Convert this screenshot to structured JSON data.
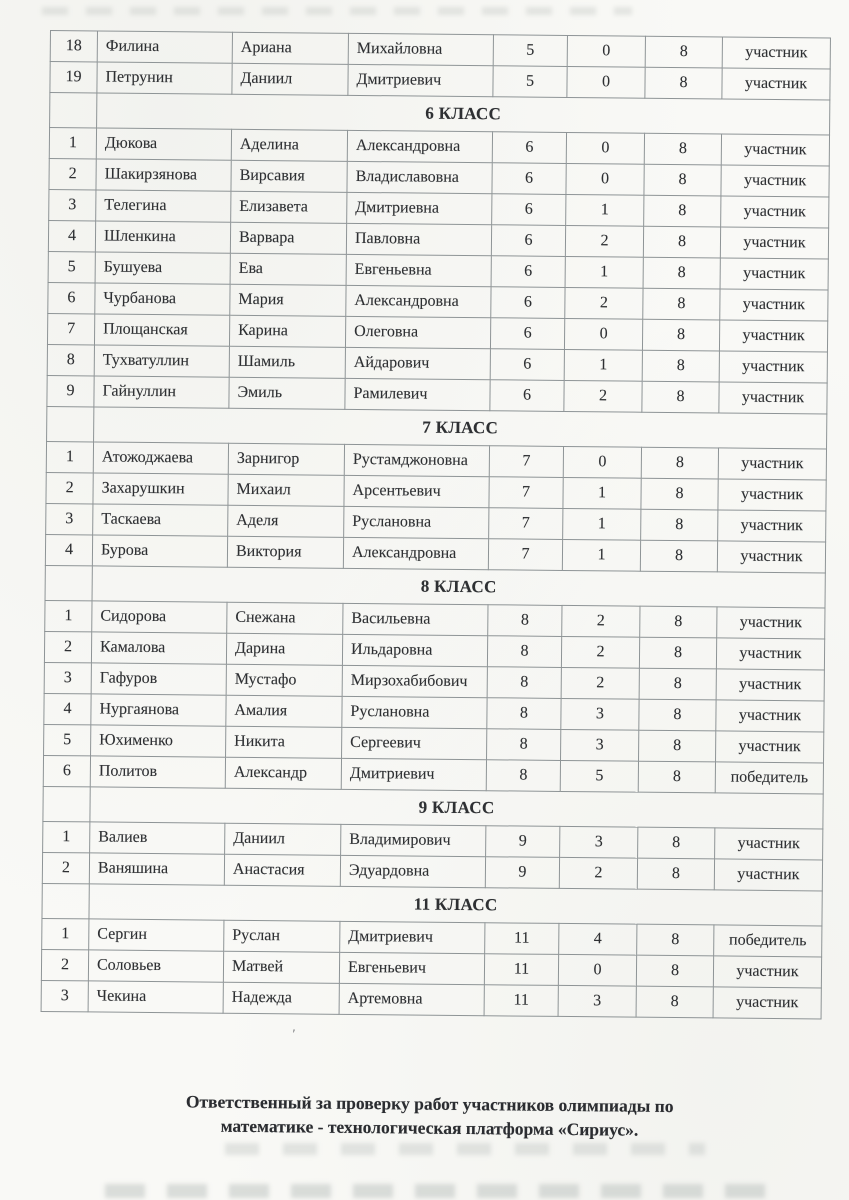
{
  "document": {
    "kind": "scanned olympiad results protocol (continuation page)",
    "footer": {
      "line1": "Ответственный за проверку работ участников олимпиады по",
      "line2": "математике - технологическая платформа «Сириус»."
    }
  },
  "colors": {
    "paper": "#f9f9f6",
    "ink": "#2e3033",
    "table_border": "#8e9496"
  },
  "table": {
    "columns": [
      "num",
      "last_name",
      "first_name",
      "patronymic",
      "grade",
      "score",
      "max_score",
      "status"
    ],
    "leading_rows": [
      {
        "num": "18",
        "last_name": "Филина",
        "first_name": "Ариана",
        "patronymic": "Михайловна",
        "grade": "5",
        "score": "0",
        "max_score": "8",
        "status": "участник"
      },
      {
        "num": "19",
        "last_name": "Петрунин",
        "first_name": "Даниил",
        "patronymic": "Дмитриевич",
        "grade": "5",
        "score": "0",
        "max_score": "8",
        "status": "участник"
      }
    ],
    "sections": [
      {
        "header": "6 КЛАСС",
        "rows": [
          {
            "num": "1",
            "last_name": "Дюкова",
            "first_name": "Аделина",
            "patronymic": "Александровна",
            "grade": "6",
            "score": "0",
            "max_score": "8",
            "status": "участник"
          },
          {
            "num": "2",
            "last_name": "Шакирзянова",
            "first_name": "Вирсавия",
            "patronymic": "Владиславовна",
            "grade": "6",
            "score": "0",
            "max_score": "8",
            "status": "участник"
          },
          {
            "num": "3",
            "last_name": "Телегина",
            "first_name": "Елизавета",
            "patronymic": "Дмитриевна",
            "grade": "6",
            "score": "1",
            "max_score": "8",
            "status": "участник"
          },
          {
            "num": "4",
            "last_name": "Шленкина",
            "first_name": "Варвара",
            "patronymic": "Павловна",
            "grade": "6",
            "score": "2",
            "max_score": "8",
            "status": "участник"
          },
          {
            "num": "5",
            "last_name": "Бушуева",
            "first_name": "Ева",
            "patronymic": "Евгеньевна",
            "grade": "6",
            "score": "1",
            "max_score": "8",
            "status": "участник"
          },
          {
            "num": "6",
            "last_name": "Чурбанова",
            "first_name": "Мария",
            "patronymic": "Александровна",
            "grade": "6",
            "score": "2",
            "max_score": "8",
            "status": "участник"
          },
          {
            "num": "7",
            "last_name": "Площанская",
            "first_name": "Карина",
            "patronymic": "Олеговна",
            "grade": "6",
            "score": "0",
            "max_score": "8",
            "status": "участник"
          },
          {
            "num": "8",
            "last_name": "Тухватуллин",
            "first_name": "Шамиль",
            "patronymic": "Айдарович",
            "grade": "6",
            "score": "1",
            "max_score": "8",
            "status": "участник"
          },
          {
            "num": "9",
            "last_name": "Гайнуллин",
            "first_name": "Эмиль",
            "patronymic": "Рамилевич",
            "grade": "6",
            "score": "2",
            "max_score": "8",
            "status": "участник"
          }
        ]
      },
      {
        "header": "7 КЛАСС",
        "rows": [
          {
            "num": "1",
            "last_name": "Атожоджаева",
            "first_name": "Зарнигор",
            "patronymic": "Рустамджоновна",
            "grade": "7",
            "score": "0",
            "max_score": "8",
            "status": "участник"
          },
          {
            "num": "2",
            "last_name": "Захарушкин",
            "first_name": "Михаил",
            "patronymic": "Арсентьевич",
            "grade": "7",
            "score": "1",
            "max_score": "8",
            "status": "участник"
          },
          {
            "num": "3",
            "last_name": "Таскаева",
            "first_name": "Аделя",
            "patronymic": "Руслановна",
            "grade": "7",
            "score": "1",
            "max_score": "8",
            "status": "участник"
          },
          {
            "num": "4",
            "last_name": "Бурова",
            "first_name": "Виктория",
            "patronymic": "Александровна",
            "grade": "7",
            "score": "1",
            "max_score": "8",
            "status": "участник"
          }
        ]
      },
      {
        "header": "8 КЛАСС",
        "rows": [
          {
            "num": "1",
            "last_name": "Сидорова",
            "first_name": "Снежана",
            "patronymic": "Васильевна",
            "grade": "8",
            "score": "2",
            "max_score": "8",
            "status": "участник"
          },
          {
            "num": "2",
            "last_name": "Камалова",
            "first_name": "Дарина",
            "patronymic": "Ильдаровна",
            "grade": "8",
            "score": "2",
            "max_score": "8",
            "status": "участник"
          },
          {
            "num": "3",
            "last_name": "Гафуров",
            "first_name": "Мустафо",
            "patronymic": "Мирзохабибович",
            "grade": "8",
            "score": "2",
            "max_score": "8",
            "status": "участник"
          },
          {
            "num": "4",
            "last_name": "Нургаянова",
            "first_name": "Амалия",
            "patronymic": "Руслановна",
            "grade": "8",
            "score": "3",
            "max_score": "8",
            "status": "участник"
          },
          {
            "num": "5",
            "last_name": "Юхименко",
            "first_name": "Никита",
            "patronymic": "Сергеевич",
            "grade": "8",
            "score": "3",
            "max_score": "8",
            "status": "участник"
          },
          {
            "num": "6",
            "last_name": "Политов",
            "first_name": "Александр",
            "patronymic": "Дмитриевич",
            "grade": "8",
            "score": "5",
            "max_score": "8",
            "status": "победитель"
          }
        ]
      },
      {
        "header": "9 КЛАСС",
        "rows": [
          {
            "num": "1",
            "last_name": "Валиев",
            "first_name": "Даниил",
            "patronymic": "Владимирович",
            "grade": "9",
            "score": "3",
            "max_score": "8",
            "status": "участник"
          },
          {
            "num": "2",
            "last_name": "Ваняшина",
            "first_name": "Анастасия",
            "patronymic": "Эдуардовна",
            "grade": "9",
            "score": "2",
            "max_score": "8",
            "status": "участник"
          }
        ]
      },
      {
        "header": "11 КЛАСС",
        "rows": [
          {
            "num": "1",
            "last_name": "Сергин",
            "first_name": "Руслан",
            "patronymic": "Дмитриевич",
            "grade": "11",
            "score": "4",
            "max_score": "8",
            "status": "победитель"
          },
          {
            "num": "2",
            "last_name": "Соловьев",
            "first_name": "Матвей",
            "patronymic": "Евгеньевич",
            "grade": "11",
            "score": "0",
            "max_score": "8",
            "status": "участник"
          },
          {
            "num": "3",
            "last_name": "Чекина",
            "first_name": "Надежда",
            "patronymic": "Артемовна",
            "grade": "11",
            "score": "3",
            "max_score": "8",
            "status": "участник"
          }
        ]
      }
    ]
  }
}
